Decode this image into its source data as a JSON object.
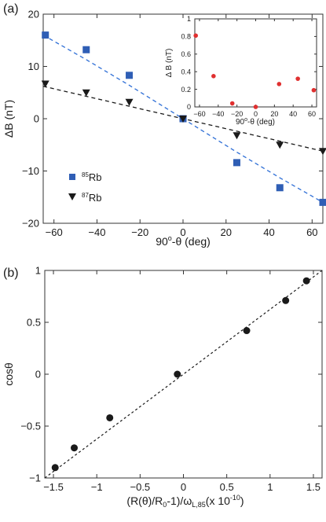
{
  "figure": {
    "panel_a_label": "(a)",
    "panel_b_label": "(b)"
  },
  "chart_data": [
    {
      "panel": "(a)",
      "type": "scatter",
      "xlabel": "90°-θ (deg)",
      "ylabel": "ΔB (nT)",
      "xlim": [
        -65,
        65
      ],
      "ylim": [
        -20,
        20
      ],
      "xticks": [
        -60,
        -40,
        -20,
        0,
        20,
        40,
        60
      ],
      "yticks": [
        -20,
        -10,
        0,
        10,
        20
      ],
      "grid": false,
      "legend_position": "lower-left",
      "series": [
        {
          "name": "85Rb",
          "marker": "square",
          "color": "#2f5eb5",
          "x": [
            -64,
            -45,
            -25,
            0,
            25,
            45,
            65
          ],
          "y": [
            16,
            13.2,
            8.3,
            0,
            -8.4,
            -13.2,
            -16
          ]
        },
        {
          "name": "87Rb",
          "marker": "triangle-down",
          "color": "#1a1a1a",
          "x": [
            -64,
            -45,
            -25,
            0,
            25,
            45,
            65
          ],
          "y": [
            6.7,
            5,
            3.2,
            0,
            -3.2,
            -5,
            -6.2
          ]
        }
      ],
      "fits": [
        {
          "series": "85Rb",
          "style": "dashed",
          "color": "#2f6fd6",
          "x": [
            -65,
            -45,
            -25,
            0,
            25,
            45,
            65
          ],
          "y": [
            16,
            11.3,
            6.4,
            0,
            -6.4,
            -11.3,
            -16
          ]
        },
        {
          "series": "87Rb",
          "style": "dashed",
          "color": "#1a1a1a",
          "x": [
            -65,
            0,
            65
          ],
          "y": [
            6.2,
            0,
            -6.2
          ]
        }
      ],
      "inset": {
        "type": "scatter",
        "xlabel": "90°-θ (deg)",
        "ylabel": "Δ B (nT)",
        "xlim": [
          -65,
          65
        ],
        "ylim": [
          0,
          1
        ],
        "xticks": [
          -60,
          -40,
          -20,
          0,
          20,
          40,
          60
        ],
        "yticks": [
          0,
          0.2,
          0.4,
          0.6,
          0.8,
          1
        ],
        "color": "#e03030",
        "x": [
          -64,
          -45,
          -25,
          0,
          25,
          45,
          62
        ],
        "y": [
          0.81,
          0.35,
          0.04,
          0,
          0.26,
          0.32,
          0.19
        ]
      }
    },
    {
      "panel": "(b)",
      "type": "scatter",
      "xlabel": "(R(θ)/R0-1)/ωL,85(x 10-10)",
      "ylabel": "cosθ",
      "xlim": [
        -1.6,
        1.6
      ],
      "ylim": [
        -1,
        1
      ],
      "xticks": [
        -1.5,
        -1,
        -0.5,
        0,
        0.5,
        1,
        1.5
      ],
      "yticks": [
        -1,
        -0.5,
        0,
        0.5,
        1
      ],
      "grid": false,
      "series": [
        {
          "marker": "circle",
          "color": "#1a1a1a",
          "x": [
            -1.48,
            -1.26,
            -0.85,
            -0.07,
            0.73,
            1.18,
            1.42
          ],
          "y": [
            -0.9,
            -0.71,
            -0.42,
            0,
            0.42,
            0.71,
            0.9
          ]
        }
      ],
      "fit": {
        "style": "dotted",
        "color": "#1a1a1a",
        "x": [
          -1.6,
          1.6
        ],
        "y": [
          -1.01,
          1.01
        ]
      }
    }
  ]
}
